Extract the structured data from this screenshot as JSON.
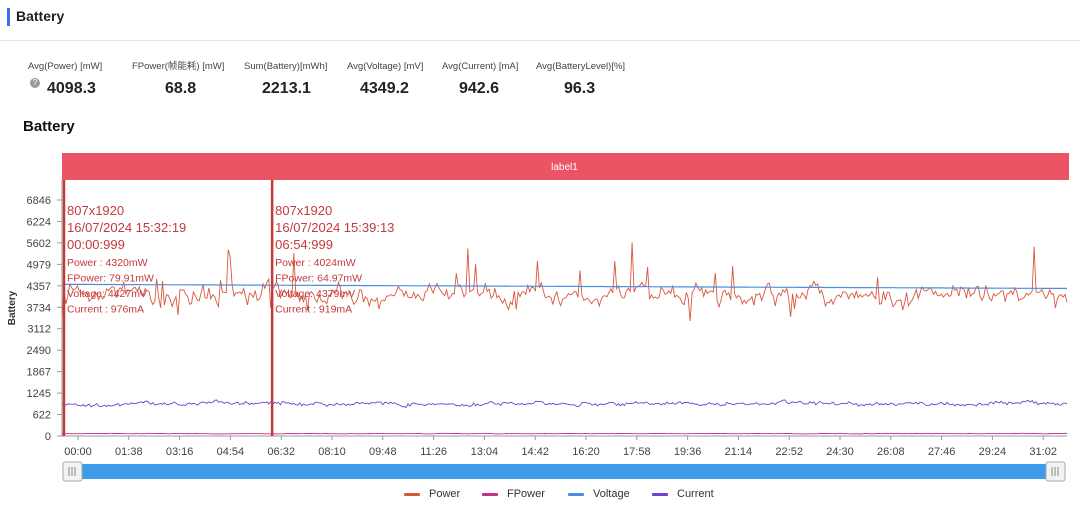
{
  "section": {
    "title": "Battery"
  },
  "stats": [
    {
      "label": "Avg(Power) [mW]",
      "value": "4098.3",
      "help": true
    },
    {
      "label": "FPower(帧能耗) [mW]",
      "value": "68.8"
    },
    {
      "label": "Sum(Battery)[mWh]",
      "value": "2213.1"
    },
    {
      "label": "Avg(Voltage) [mV]",
      "value": "4349.2"
    },
    {
      "label": "Avg(Current) [mA]",
      "value": "942.6"
    },
    {
      "label": "Avg(BatteryLevel)[%]",
      "value": "96.3"
    }
  ],
  "chart_title": "Battery",
  "chart_data": {
    "type": "line",
    "band_label": "label1",
    "ylabel": "Battery",
    "ylim": [
      0,
      6846
    ],
    "yticks": [
      "0",
      "622",
      "1245",
      "1867",
      "2490",
      "3112",
      "3734",
      "4357",
      "4979",
      "5602",
      "6224",
      "6846"
    ],
    "xticks": [
      "00:00",
      "01:38",
      "03:16",
      "04:54",
      "06:32",
      "08:10",
      "09:48",
      "11:26",
      "13:04",
      "14:42",
      "16:20",
      "17:58",
      "19:36",
      "21:14",
      "22:52",
      "24:30",
      "26:08",
      "27:46",
      "29:24",
      "31:02"
    ],
    "x_range_seconds": [
      0,
      1980
    ],
    "series": [
      {
        "name": "Power",
        "color": "#d9573f",
        "mean": 4098,
        "noise": 320,
        "spikes": true
      },
      {
        "name": "FPower",
        "color": "#c1328e",
        "mean": 69,
        "noise": 8,
        "spikes": false
      },
      {
        "name": "Voltage",
        "color": "#4a8fe0",
        "start": 4400,
        "end": 4280,
        "noise": 0,
        "spikes": false
      },
      {
        "name": "Current",
        "color": "#7040d0",
        "mean": 943,
        "noise": 70,
        "spikes": false
      }
    ],
    "markers": [
      {
        "t_seconds": 0,
        "lines": [
          "807x1920",
          "16/07/2024 15:32:19",
          "00:00:999"
        ],
        "details": [
          "Power  : 4320mW",
          "FPower: 79.91mW",
          "Voltage: 4427mV",
          "Current : 976mA"
        ]
      },
      {
        "t_seconds": 414,
        "lines": [
          "807x1920",
          "16/07/2024 15:39:13",
          "06:54:999"
        ],
        "details": [
          "Power  : 4024mW",
          "FPower: 64.97mW",
          "Voltage: 4379mV",
          "Current : 919mA"
        ]
      }
    ],
    "grid": false,
    "legend_position": "bottom"
  }
}
